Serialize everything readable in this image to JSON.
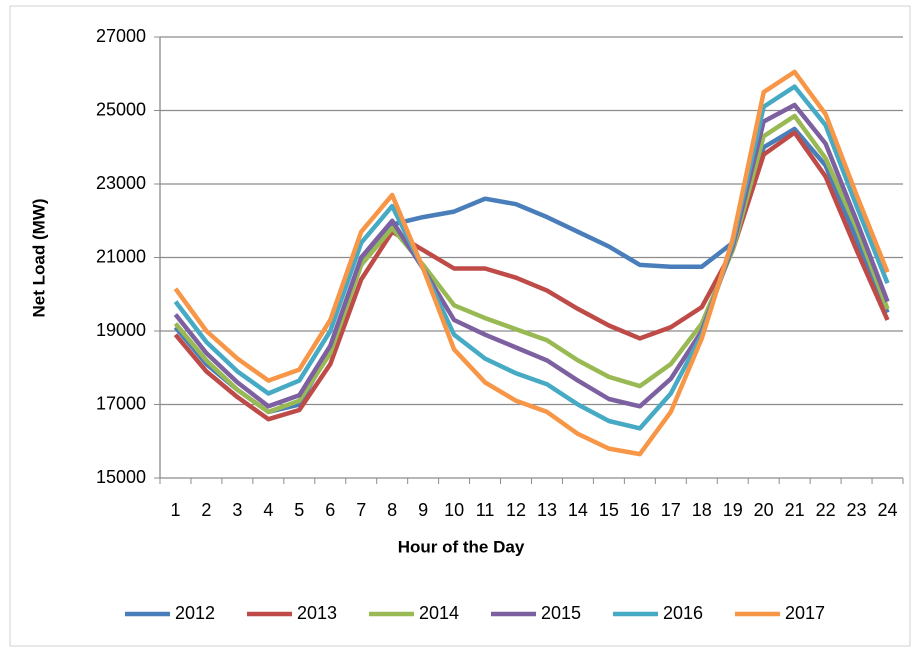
{
  "chart_data": {
    "type": "line",
    "x_label": "Hour of the Day",
    "y_label": "Net Load (MW)",
    "categories": [
      "1",
      "2",
      "3",
      "4",
      "5",
      "6",
      "7",
      "8",
      "9",
      "10",
      "11",
      "12",
      "13",
      "14",
      "15",
      "16",
      "17",
      "18",
      "19",
      "20",
      "21",
      "22",
      "23",
      "24"
    ],
    "series": [
      {
        "name": "2012",
        "color": "#4a7ebb",
        "values": [
          19100,
          18100,
          17400,
          16800,
          17000,
          18500,
          20800,
          21900,
          22100,
          22250,
          22600,
          22450,
          22100,
          21700,
          21300,
          20800,
          20750,
          20750,
          21400,
          24000,
          24500,
          23500,
          21500,
          19500
        ]
      },
      {
        "name": "2013",
        "color": "#be4b48",
        "values": [
          18900,
          17900,
          17200,
          16600,
          16850,
          18100,
          20400,
          21700,
          21200,
          20700,
          20700,
          20450,
          20100,
          19600,
          19150,
          18800,
          19100,
          19650,
          21200,
          23800,
          24400,
          23200,
          21200,
          19300
        ]
      },
      {
        "name": "2014",
        "color": "#98b954",
        "values": [
          19200,
          18200,
          17400,
          16800,
          17100,
          18400,
          20800,
          21800,
          20800,
          19700,
          19350,
          19050,
          18750,
          18200,
          17750,
          17500,
          18100,
          19200,
          21200,
          24300,
          24850,
          23700,
          21800,
          19600
        ]
      },
      {
        "name": "2015",
        "color": "#7d60a0",
        "values": [
          19450,
          18400,
          17600,
          16950,
          17250,
          18600,
          21000,
          22000,
          20700,
          19300,
          18900,
          18550,
          18200,
          17650,
          17150,
          16950,
          17700,
          19000,
          21300,
          24700,
          25150,
          24100,
          22000,
          19800
        ]
      },
      {
        "name": "2016",
        "color": "#46aac5",
        "values": [
          19800,
          18700,
          17900,
          17300,
          17650,
          19000,
          21400,
          22400,
          20700,
          18900,
          18250,
          17850,
          17550,
          17000,
          16550,
          16350,
          17300,
          18900,
          21400,
          25100,
          25650,
          24600,
          22400,
          20300
        ]
      },
      {
        "name": "2017",
        "color": "#f79646",
        "values": [
          20150,
          19000,
          18250,
          17650,
          17950,
          19300,
          21700,
          22700,
          20700,
          18500,
          17600,
          17100,
          16800,
          16200,
          15800,
          15650,
          16800,
          18800,
          21500,
          25500,
          26050,
          24900,
          22700,
          20600
        ]
      }
    ],
    "ylim": [
      15000,
      27000
    ],
    "yticks": [
      15000,
      17000,
      19000,
      21000,
      23000,
      25000,
      27000
    ],
    "grid": true,
    "legend": "bottom"
  }
}
